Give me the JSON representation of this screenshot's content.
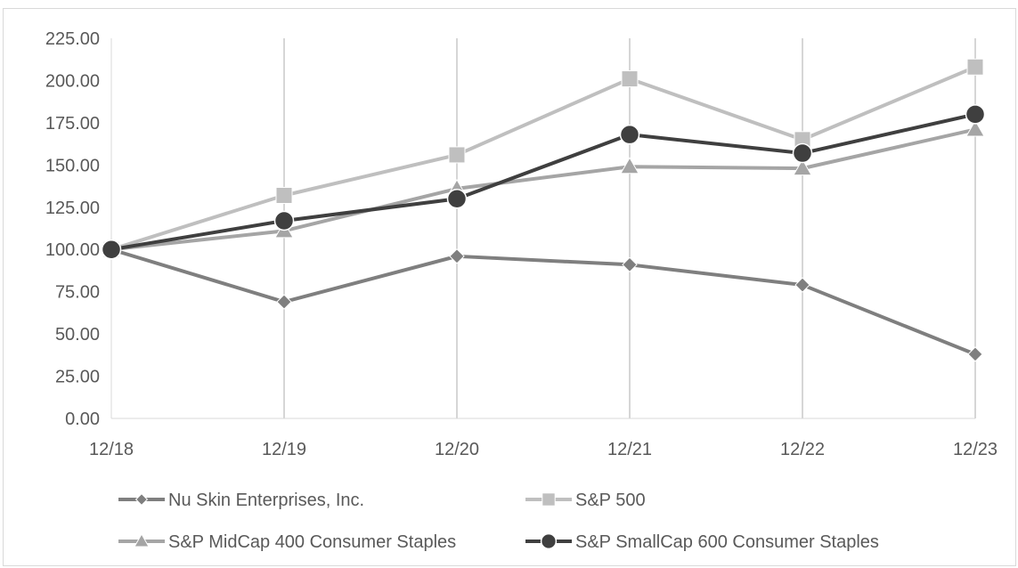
{
  "chart_data": {
    "type": "line",
    "title": "",
    "xlabel": "",
    "ylabel": "",
    "categories": [
      "12/18",
      "12/19",
      "12/20",
      "12/21",
      "12/22",
      "12/23"
    ],
    "ylim": [
      0,
      225
    ],
    "y_ticks": [
      "0.00",
      "25.00",
      "50.00",
      "75.00",
      "100.00",
      "125.00",
      "150.00",
      "175.00",
      "200.00",
      "225.00"
    ],
    "grid": "vertical",
    "legend_position": "bottom",
    "series": [
      {
        "name": "Nu Skin Enterprises, Inc.",
        "marker": "diamond",
        "color": "#7f7f7f",
        "values": [
          100,
          69,
          96,
          91,
          79,
          38
        ]
      },
      {
        "name": "S&P 500",
        "marker": "square",
        "color": "#bfbfbf",
        "values": [
          100,
          132,
          156,
          201,
          165,
          208
        ]
      },
      {
        "name": "S&P MidCap 400 Consumer Staples",
        "marker": "triangle",
        "color": "#a5a5a5",
        "values": [
          100,
          111,
          136,
          149,
          148,
          171
        ]
      },
      {
        "name": "S&P SmallCap 600 Consumer Staples",
        "marker": "circle",
        "color": "#3f3f3f",
        "values": [
          100,
          117,
          130,
          168,
          157,
          180
        ]
      }
    ]
  }
}
